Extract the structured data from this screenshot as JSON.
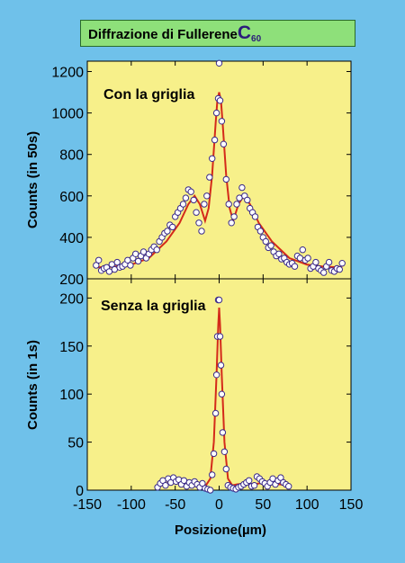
{
  "title": {
    "prefix": "Diffrazione di Fullerene",
    "molecule": "C",
    "subscript": "60"
  },
  "colors": {
    "background": "#6fc1ea",
    "plot_bg": "#f7f08a",
    "title_bg": "#8ee07a",
    "line": "#d42a1a",
    "marker_edge": "#3a2a8a",
    "marker_fill": "#ffffff"
  },
  "chart_data": [
    {
      "type": "line",
      "panel_label": "Con la griglia",
      "ylabel": "Counts (in 50s)",
      "xlim": [
        -150,
        150
      ],
      "ylim": [
        200,
        1250
      ],
      "yticks": [
        200,
        400,
        600,
        800,
        1000,
        1200
      ],
      "series": [
        {
          "style": "line",
          "x": [
            -140,
            -120,
            -100,
            -80,
            -60,
            -45,
            -35,
            -28,
            -22,
            -16,
            -12,
            -8,
            -4,
            -2,
            0,
            2,
            4,
            8,
            12,
            16,
            22,
            28,
            35,
            45,
            60,
            80,
            100,
            120,
            140
          ],
          "y": [
            255,
            258,
            268,
            300,
            380,
            470,
            560,
            600,
            560,
            480,
            540,
            700,
            950,
            1060,
            1100,
            1060,
            950,
            700,
            540,
            480,
            560,
            600,
            560,
            470,
            380,
            300,
            268,
            258,
            255
          ]
        },
        {
          "style": "markers",
          "x": [
            -140,
            -137,
            -134,
            -131,
            -128,
            -125,
            -122,
            -119,
            -116,
            -113,
            -110,
            -107,
            -104,
            -101,
            -98,
            -95,
            -92,
            -89,
            -86,
            -83,
            -80,
            -77,
            -74,
            -71,
            -68,
            -65,
            -62,
            -59,
            -56,
            -53,
            -50,
            -47,
            -44,
            -41,
            -38,
            -35,
            -32,
            -29,
            -26,
            -23,
            -20,
            -17,
            -14,
            -11,
            -8,
            -5,
            -3,
            -1,
            0,
            1,
            3,
            5,
            8,
            11,
            14,
            17,
            20,
            23,
            26,
            29,
            32,
            35,
            38,
            41,
            44,
            47,
            50,
            53,
            56,
            59,
            62,
            65,
            68,
            71,
            74,
            77,
            80,
            83,
            86,
            89,
            92,
            95,
            98,
            101,
            104,
            107,
            110,
            113,
            116,
            119,
            122,
            125,
            128,
            131,
            134,
            137,
            140
          ],
          "y": [
            265,
            290,
            240,
            250,
            255,
            235,
            270,
            245,
            280,
            255,
            260,
            270,
            290,
            265,
            300,
            320,
            285,
            310,
            330,
            300,
            320,
            340,
            355,
            340,
            380,
            400,
            420,
            430,
            460,
            450,
            500,
            520,
            540,
            560,
            590,
            630,
            620,
            580,
            520,
            470,
            430,
            560,
            600,
            690,
            780,
            870,
            1000,
            1070,
            1240,
            1060,
            960,
            850,
            680,
            560,
            470,
            500,
            560,
            590,
            640,
            600,
            580,
            540,
            520,
            500,
            450,
            430,
            400,
            380,
            350,
            360,
            330,
            310,
            320,
            295,
            300,
            280,
            270,
            275,
            260,
            310,
            300,
            340,
            290,
            300,
            250,
            260,
            280,
            250,
            240,
            230,
            260,
            280,
            240,
            235,
            250,
            245,
            275
          ]
        }
      ]
    },
    {
      "type": "line",
      "panel_label": "Senza la griglia",
      "ylabel": "Counts (in 1s)",
      "xlabel": "Posizione(µm)",
      "xlim": [
        -150,
        150
      ],
      "xticks": [
        -150,
        -100,
        -50,
        0,
        50,
        100,
        150
      ],
      "ylim": [
        0,
        220
      ],
      "yticks": [
        0,
        50,
        100,
        150,
        200
      ],
      "series": [
        {
          "style": "line",
          "x": [
            -70,
            -60,
            -50,
            -40,
            -30,
            -20,
            -15,
            -10,
            -6,
            -3,
            -1,
            0,
            1,
            3,
            6,
            10,
            15,
            20,
            30,
            40,
            50,
            60,
            70,
            80
          ],
          "y": [
            6,
            7,
            8,
            6,
            7,
            6,
            5,
            12,
            50,
            120,
            172,
            190,
            172,
            120,
            50,
            12,
            5,
            6,
            7,
            6,
            8,
            7,
            6,
            5
          ]
        },
        {
          "style": "markers",
          "x": [
            -70,
            -67,
            -64,
            -61,
            -58,
            -55,
            -52,
            -49,
            -46,
            -43,
            -40,
            -37,
            -34,
            -31,
            -28,
            -25,
            -22,
            -19,
            -16,
            -13,
            -10,
            -8,
            -6,
            -4,
            -3,
            -2,
            -1,
            0,
            1,
            2,
            3,
            4,
            6,
            8,
            10,
            13,
            16,
            19,
            22,
            25,
            28,
            31,
            34,
            37,
            40,
            43,
            46,
            49,
            52,
            55,
            58,
            61,
            64,
            67,
            70,
            73,
            76,
            79
          ],
          "y": [
            3,
            7,
            10,
            5,
            12,
            8,
            13,
            9,
            11,
            6,
            10,
            4,
            8,
            5,
            9,
            6,
            3,
            7,
            2,
            1,
            0,
            16,
            38,
            80,
            120,
            160,
            198,
            198,
            160,
            130,
            100,
            60,
            40,
            22,
            5,
            3,
            2,
            1,
            3,
            4,
            6,
            8,
            10,
            4,
            5,
            14,
            12,
            9,
            7,
            4,
            8,
            12,
            6,
            10,
            13,
            8,
            6,
            4
          ]
        }
      ]
    }
  ]
}
